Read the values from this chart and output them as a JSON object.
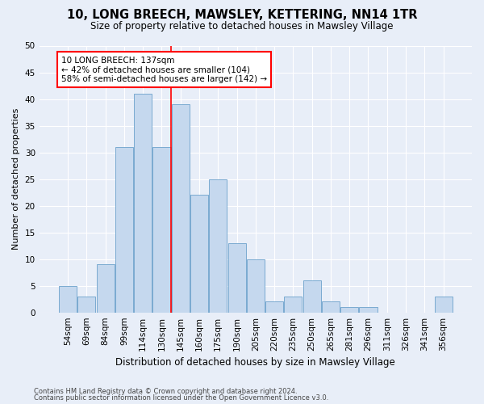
{
  "title1": "10, LONG BREECH, MAWSLEY, KETTERING, NN14 1TR",
  "title2": "Size of property relative to detached houses in Mawsley Village",
  "xlabel": "Distribution of detached houses by size in Mawsley Village",
  "ylabel": "Number of detached properties",
  "categories": [
    "54sqm",
    "69sqm",
    "84sqm",
    "99sqm",
    "114sqm",
    "130sqm",
    "145sqm",
    "160sqm",
    "175sqm",
    "190sqm",
    "205sqm",
    "220sqm",
    "235sqm",
    "250sqm",
    "265sqm",
    "281sqm",
    "296sqm",
    "311sqm",
    "326sqm",
    "341sqm",
    "356sqm"
  ],
  "values": [
    5,
    3,
    9,
    31,
    41,
    31,
    39,
    22,
    25,
    13,
    10,
    2,
    3,
    6,
    2,
    1,
    1,
    0,
    0,
    0,
    3
  ],
  "bar_color": "#c5d8ee",
  "bar_edge_color": "#7aaad0",
  "vline_x": 5.5,
  "vline_color": "red",
  "annotation_text": "10 LONG BREECH: 137sqm\n← 42% of detached houses are smaller (104)\n58% of semi-detached houses are larger (142) →",
  "annotation_box_color": "white",
  "annotation_box_edge_color": "red",
  "ylim": [
    0,
    50
  ],
  "yticks": [
    0,
    5,
    10,
    15,
    20,
    25,
    30,
    35,
    40,
    45,
    50
  ],
  "footer1": "Contains HM Land Registry data © Crown copyright and database right 2024.",
  "footer2": "Contains public sector information licensed under the Open Government Licence v3.0.",
  "bg_color": "#e8eef8",
  "plot_bg_color": "#e8eef8",
  "title1_fontsize": 10.5,
  "title2_fontsize": 8.5,
  "xlabel_fontsize": 8.5,
  "ylabel_fontsize": 8,
  "tick_fontsize": 7.5,
  "annot_fontsize": 7.5,
  "footer_fontsize": 6
}
